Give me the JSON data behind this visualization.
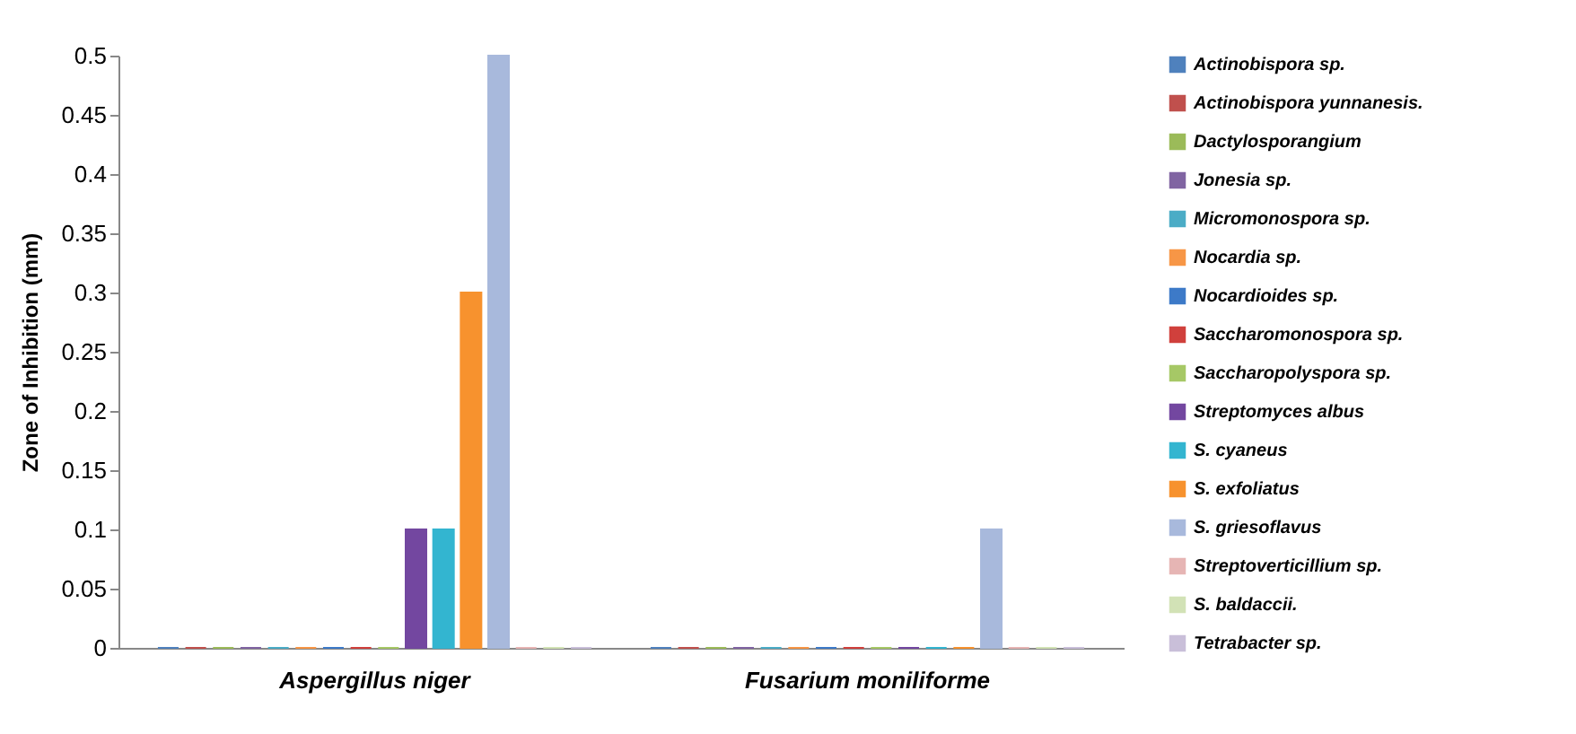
{
  "chart_data": {
    "type": "bar",
    "ylabel": "Zone of Inhibition (mm)",
    "categories": [
      "Aspergillus niger",
      "Fusarium moniliforme"
    ],
    "ylim": [
      0,
      0.5
    ],
    "yticks": [
      0,
      0.05,
      0.1,
      0.15,
      0.2,
      0.25,
      0.3,
      0.35,
      0.4,
      0.45,
      0.5
    ],
    "grid": false,
    "legend": "right",
    "series": [
      {
        "name": "Actinobispora sp.",
        "color": "#4f81bd",
        "values": [
          0,
          0
        ]
      },
      {
        "name": "Actinobispora yunnanesis.",
        "color": "#c0504d",
        "values": [
          0,
          0
        ]
      },
      {
        "name": "Dactylosporangium",
        "color": "#9bbb59",
        "values": [
          0,
          0
        ]
      },
      {
        "name": "Jonesia sp.",
        "color": "#8064a2",
        "values": [
          0,
          0
        ]
      },
      {
        "name": "Micromonospora sp.",
        "color": "#4bacc6",
        "values": [
          0,
          0
        ]
      },
      {
        "name": "Nocardia sp.",
        "color": "#f79646",
        "values": [
          0,
          0
        ]
      },
      {
        "name": "Nocardioides sp.",
        "color": "#3d7ac8",
        "values": [
          0,
          0
        ]
      },
      {
        "name": "Saccharomonospora sp.",
        "color": "#d0403c",
        "values": [
          0,
          0
        ]
      },
      {
        "name": "Saccharopolyspora sp.",
        "color": "#a6c866",
        "values": [
          0,
          0
        ]
      },
      {
        "name": "Streptomyces albus",
        "color": "#7347a0",
        "values": [
          0.1,
          0
        ]
      },
      {
        "name": "S. cyaneus",
        "color": "#33b5d0",
        "values": [
          0.1,
          0
        ]
      },
      {
        "name": "S. exfoliatus",
        "color": "#f7922e",
        "values": [
          0.3,
          0
        ]
      },
      {
        "name": "S. griesoflavus",
        "color": "#a8b9dc",
        "values": [
          0.5,
          0.1
        ]
      },
      {
        "name": "Streptoverticillium sp.",
        "color": "#e6b5b4",
        "values": [
          0,
          0
        ]
      },
      {
        "name": "S. baldaccii.",
        "color": "#d2e2b6",
        "values": [
          0,
          0
        ]
      },
      {
        "name": "Tetrabacter sp.",
        "color": "#c9bfd9",
        "values": [
          0,
          0
        ]
      }
    ]
  }
}
